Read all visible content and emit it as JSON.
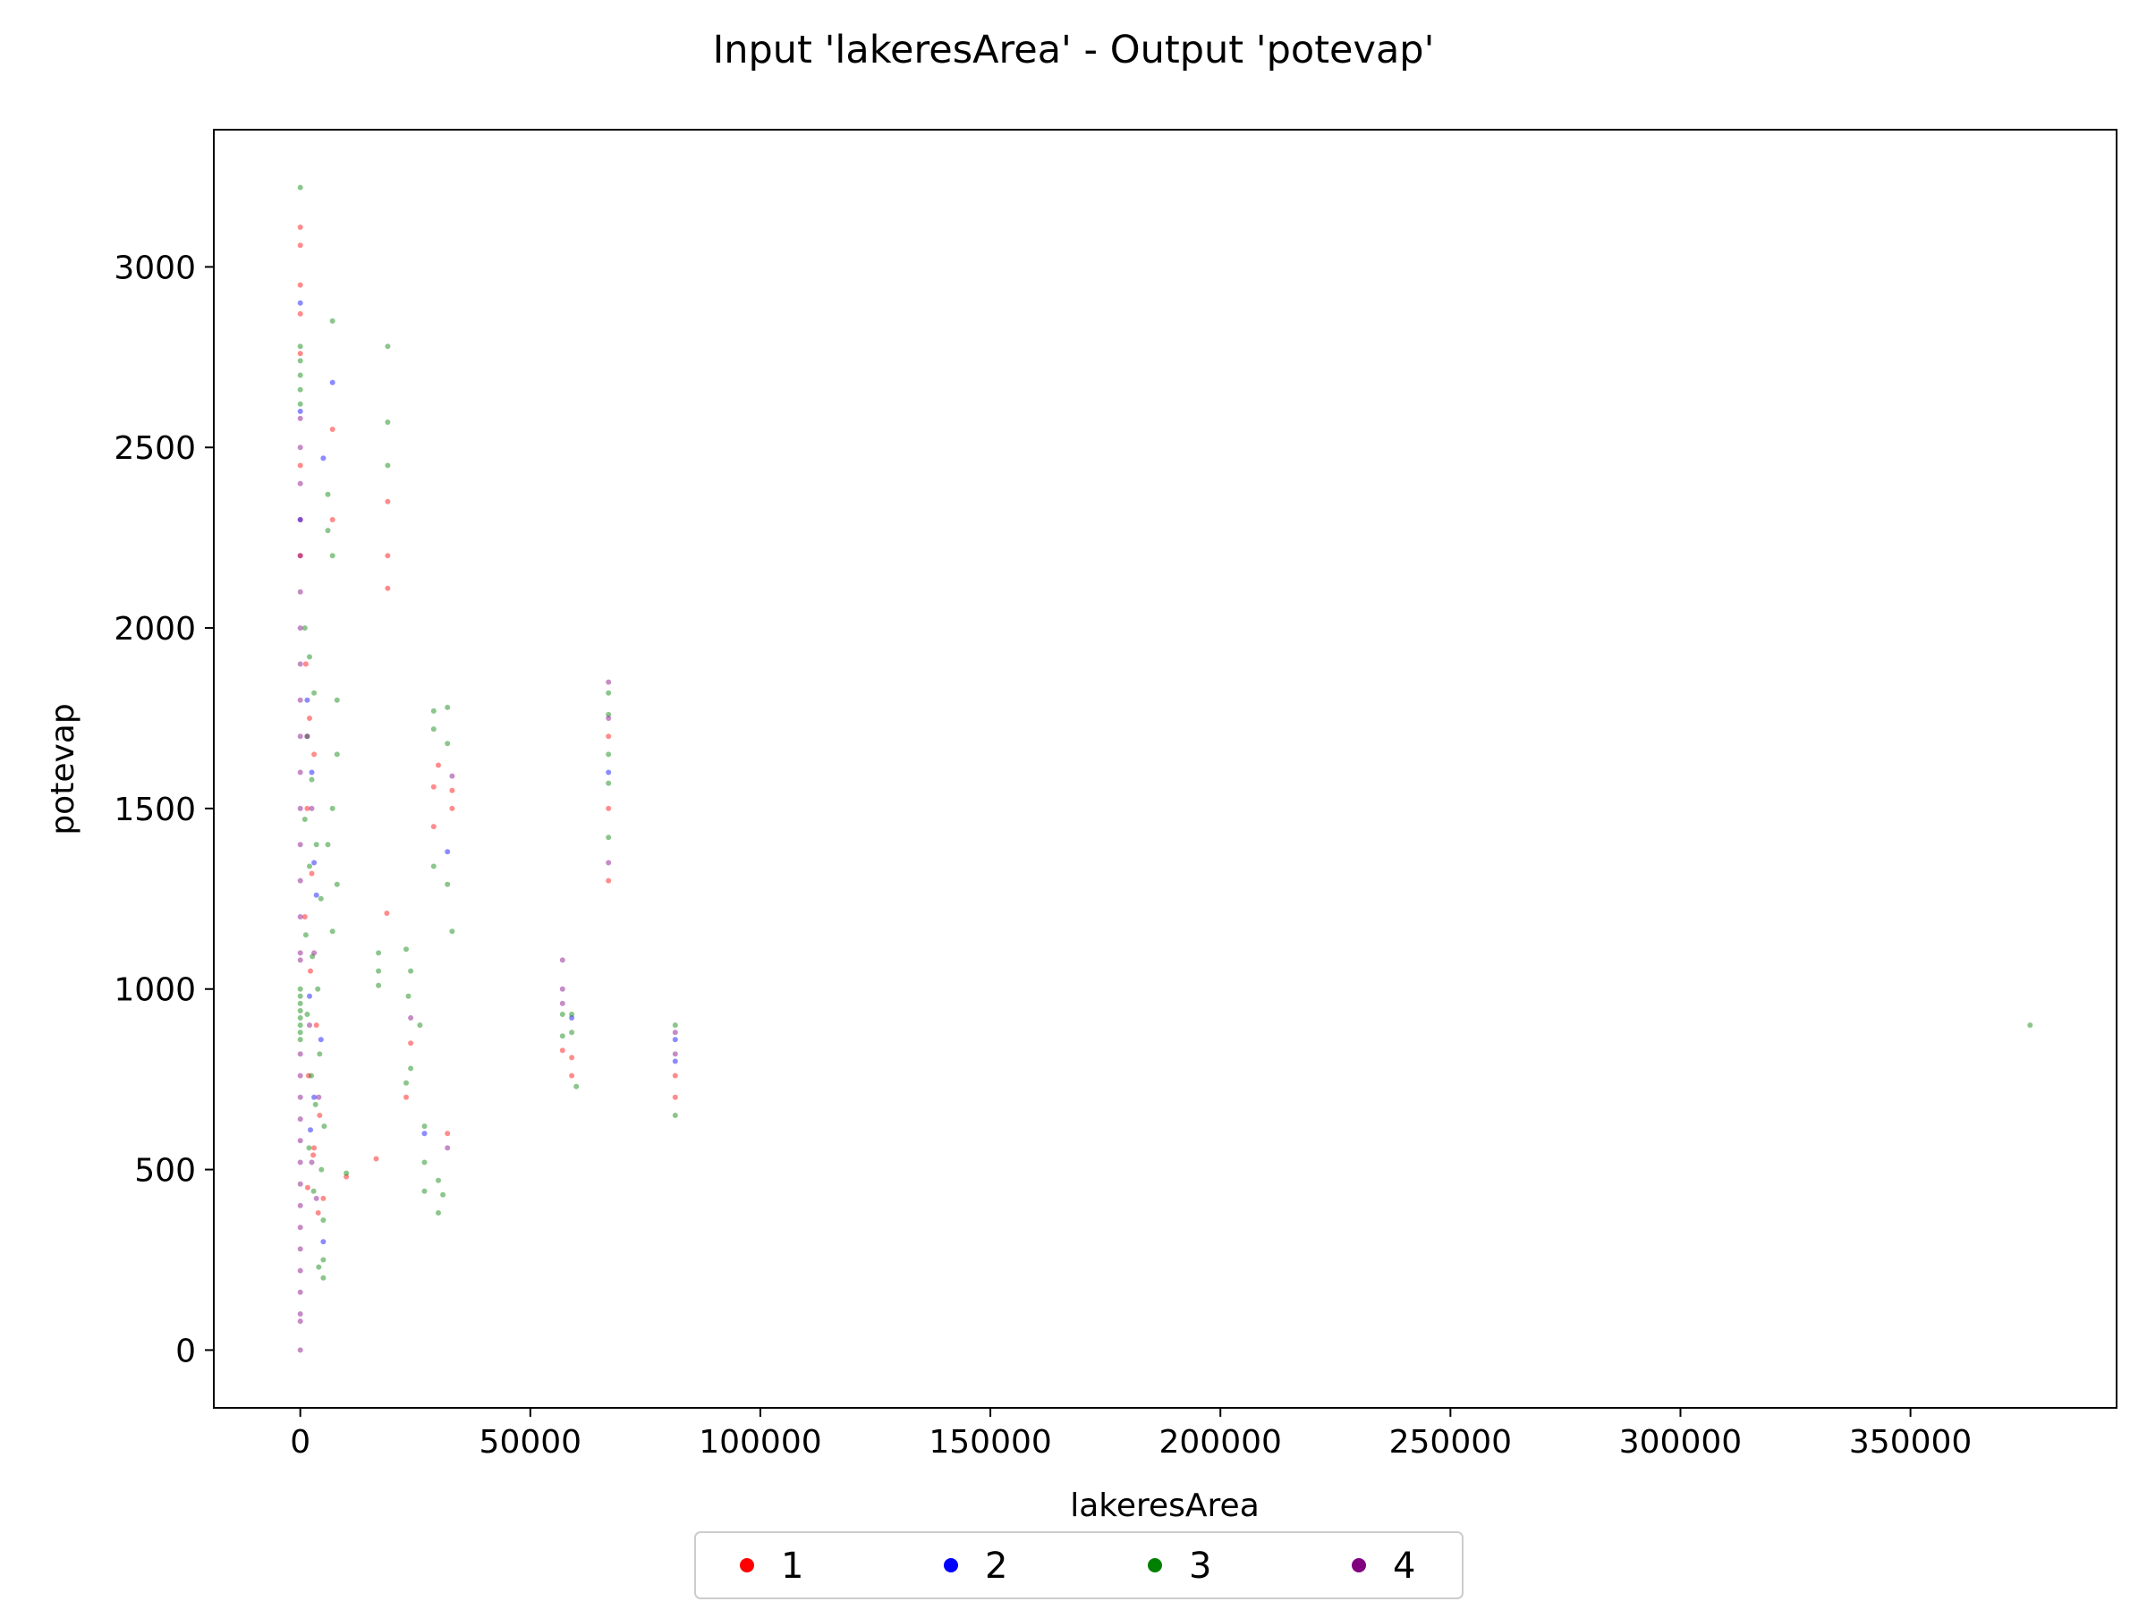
{
  "chart_data": {
    "type": "scatter",
    "title": "Input 'lakeresArea' - Output 'potevap'",
    "xlabel": "lakeresArea",
    "ylabel": "potevap",
    "xlim": [
      -18800,
      394800
    ],
    "ylim": [
      -160,
      3380
    ],
    "xticks": [
      0,
      50000,
      100000,
      150000,
      200000,
      250000,
      300000,
      350000
    ],
    "xtick_labels": [
      "0",
      "50000",
      "100000",
      "150000",
      "200000",
      "250000",
      "300000",
      "350000"
    ],
    "yticks": [
      0,
      500,
      1000,
      1500,
      2000,
      2500,
      3000
    ],
    "ytick_labels": [
      "0",
      "500",
      "1000",
      "1500",
      "2000",
      "2500",
      "3000"
    ],
    "grid": false,
    "legend_position": "bottom-center",
    "series": [
      {
        "name": "1",
        "color": "#ff0000",
        "points": [
          [
            0,
            3110
          ],
          [
            0,
            3060
          ],
          [
            0,
            2950
          ],
          [
            0,
            2870
          ],
          [
            0,
            2760
          ],
          [
            0,
            2450
          ],
          [
            0,
            2200
          ],
          [
            1200,
            1900
          ],
          [
            2000,
            1750
          ],
          [
            3000,
            1650
          ],
          [
            1500,
            1500
          ],
          [
            2500,
            1320
          ],
          [
            1000,
            1200
          ],
          [
            2200,
            1050
          ],
          [
            3500,
            900
          ],
          [
            1800,
            760
          ],
          [
            4200,
            650
          ],
          [
            2800,
            540
          ],
          [
            1600,
            450
          ],
          [
            3900,
            380
          ],
          [
            7000,
            2550
          ],
          [
            7000,
            2300
          ],
          [
            19000,
            2350
          ],
          [
            19000,
            2200
          ],
          [
            19000,
            2110
          ],
          [
            18800,
            1210
          ],
          [
            29000,
            1560
          ],
          [
            29000,
            1450
          ],
          [
            30000,
            1620
          ],
          [
            33000,
            1550
          ],
          [
            33000,
            1500
          ],
          [
            32000,
            600
          ],
          [
            24000,
            850
          ],
          [
            23000,
            700
          ],
          [
            57000,
            830
          ],
          [
            59000,
            810
          ],
          [
            59000,
            760
          ],
          [
            67000,
            1500
          ],
          [
            67000,
            1300
          ],
          [
            67000,
            1700
          ],
          [
            81500,
            760
          ],
          [
            81500,
            700
          ],
          [
            10000,
            480
          ],
          [
            5000,
            420
          ],
          [
            3000,
            560
          ],
          [
            16500,
            530
          ]
        ]
      },
      {
        "name": "2",
        "color": "#0000ff",
        "points": [
          [
            0,
            2900
          ],
          [
            0,
            2600
          ],
          [
            0,
            2300
          ],
          [
            1500,
            1800
          ],
          [
            2500,
            1600
          ],
          [
            3000,
            1350
          ],
          [
            3500,
            1260
          ],
          [
            2000,
            980
          ],
          [
            4500,
            860
          ],
          [
            3000,
            700
          ],
          [
            2200,
            610
          ],
          [
            5000,
            2470
          ],
          [
            7000,
            2680
          ],
          [
            32000,
            1380
          ],
          [
            59000,
            920
          ],
          [
            81500,
            860
          ],
          [
            81500,
            800
          ],
          [
            67000,
            1600
          ],
          [
            27000,
            600
          ],
          [
            5000,
            300
          ]
        ]
      },
      {
        "name": "3",
        "color": "#008000",
        "points": [
          [
            0,
            3220
          ],
          [
            0,
            2780
          ],
          [
            0,
            2740
          ],
          [
            0,
            2700
          ],
          [
            0,
            2660
          ],
          [
            0,
            2620
          ],
          [
            0,
            1000
          ],
          [
            0,
            980
          ],
          [
            0,
            960
          ],
          [
            0,
            940
          ],
          [
            0,
            920
          ],
          [
            0,
            900
          ],
          [
            0,
            880
          ],
          [
            0,
            860
          ],
          [
            1000,
            2000
          ],
          [
            2000,
            1920
          ],
          [
            3000,
            1820
          ],
          [
            1500,
            1700
          ],
          [
            2500,
            1580
          ],
          [
            1000,
            1470
          ],
          [
            3500,
            1400
          ],
          [
            2000,
            1340
          ],
          [
            4500,
            1250
          ],
          [
            1200,
            1150
          ],
          [
            2600,
            1090
          ],
          [
            3800,
            1000
          ],
          [
            1500,
            930
          ],
          [
            4200,
            820
          ],
          [
            2400,
            760
          ],
          [
            3300,
            680
          ],
          [
            5200,
            620
          ],
          [
            1900,
            560
          ],
          [
            4600,
            500
          ],
          [
            2900,
            440
          ],
          [
            5000,
            360
          ],
          [
            5000,
            250
          ],
          [
            4000,
            230
          ],
          [
            5000,
            200
          ],
          [
            6000,
            2370
          ],
          [
            6000,
            2270
          ],
          [
            7000,
            2850
          ],
          [
            7000,
            2200
          ],
          [
            8000,
            1800
          ],
          [
            8000,
            1650
          ],
          [
            7000,
            1500
          ],
          [
            6000,
            1400
          ],
          [
            8000,
            1290
          ],
          [
            7000,
            1160
          ],
          [
            10000,
            490
          ],
          [
            19000,
            2780
          ],
          [
            19000,
            2570
          ],
          [
            19000,
            2450
          ],
          [
            17000,
            1100
          ],
          [
            17000,
            1050
          ],
          [
            17000,
            1010
          ],
          [
            23000,
            1110
          ],
          [
            24000,
            1050
          ],
          [
            23500,
            980
          ],
          [
            26000,
            900
          ],
          [
            24000,
            780
          ],
          [
            23000,
            740
          ],
          [
            27000,
            620
          ],
          [
            27000,
            520
          ],
          [
            27000,
            440
          ],
          [
            30000,
            470
          ],
          [
            31000,
            430
          ],
          [
            30000,
            380
          ],
          [
            29000,
            1770
          ],
          [
            29000,
            1720
          ],
          [
            29000,
            1340
          ],
          [
            32000,
            1780
          ],
          [
            32000,
            1680
          ],
          [
            32000,
            1290
          ],
          [
            33000,
            1160
          ],
          [
            57000,
            930
          ],
          [
            57000,
            870
          ],
          [
            59000,
            930
          ],
          [
            59000,
            880
          ],
          [
            60000,
            730
          ],
          [
            67000,
            1820
          ],
          [
            67000,
            1760
          ],
          [
            67000,
            1650
          ],
          [
            67000,
            1570
          ],
          [
            67000,
            1420
          ],
          [
            81500,
            900
          ],
          [
            81500,
            650
          ],
          [
            376000,
            900
          ]
        ]
      },
      {
        "name": "4",
        "color": "#800080",
        "points": [
          [
            0,
            2580
          ],
          [
            0,
            2500
          ],
          [
            0,
            2400
          ],
          [
            0,
            2300
          ],
          [
            0,
            2200
          ],
          [
            0,
            2100
          ],
          [
            0,
            2000
          ],
          [
            0,
            1900
          ],
          [
            0,
            1800
          ],
          [
            0,
            1700
          ],
          [
            0,
            1600
          ],
          [
            0,
            1500
          ],
          [
            0,
            1400
          ],
          [
            0,
            1300
          ],
          [
            0,
            1200
          ],
          [
            0,
            1100
          ],
          [
            0,
            1080
          ],
          [
            0,
            820
          ],
          [
            0,
            760
          ],
          [
            0,
            700
          ],
          [
            0,
            640
          ],
          [
            0,
            580
          ],
          [
            0,
            520
          ],
          [
            0,
            460
          ],
          [
            0,
            400
          ],
          [
            0,
            340
          ],
          [
            0,
            280
          ],
          [
            0,
            220
          ],
          [
            0,
            160
          ],
          [
            0,
            100
          ],
          [
            0,
            80
          ],
          [
            0,
            0
          ],
          [
            1500,
            1700
          ],
          [
            2500,
            1500
          ],
          [
            3000,
            1100
          ],
          [
            2000,
            900
          ],
          [
            4000,
            700
          ],
          [
            2500,
            520
          ],
          [
            3500,
            420
          ],
          [
            57000,
            1080
          ],
          [
            57000,
            1000
          ],
          [
            57000,
            960
          ],
          [
            67000,
            1850
          ],
          [
            67000,
            1750
          ],
          [
            67000,
            1350
          ],
          [
            81500,
            880
          ],
          [
            81500,
            820
          ],
          [
            33000,
            1590
          ],
          [
            32000,
            560
          ],
          [
            24000,
            920
          ]
        ]
      }
    ],
    "legend": [
      "1",
      "2",
      "3",
      "4"
    ]
  }
}
